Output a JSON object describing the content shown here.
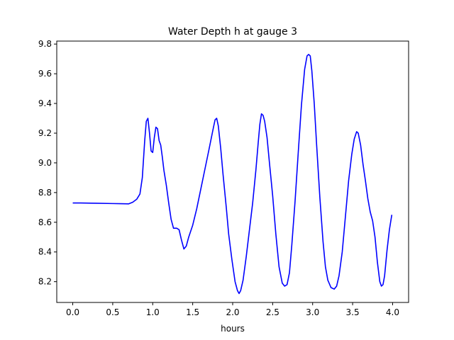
{
  "chart_data": {
    "type": "line",
    "title": "Water Depth h at gauge 3",
    "xlabel": "hours",
    "ylabel": "",
    "xlim": [
      -0.2,
      4.2
    ],
    "ylim": [
      8.06,
      9.82
    ],
    "xticks": [
      0.0,
      0.5,
      1.0,
      1.5,
      2.0,
      2.5,
      3.0,
      3.5,
      4.0
    ],
    "xtick_labels": [
      "0.0",
      "0.5",
      "1.0",
      "1.5",
      "2.0",
      "2.5",
      "3.0",
      "3.5",
      "4.0"
    ],
    "yticks": [
      8.2,
      8.4,
      8.6,
      8.8,
      9.0,
      9.2,
      9.4,
      9.6,
      9.8
    ],
    "ytick_labels": [
      "8.2",
      "8.4",
      "8.6",
      "8.8",
      "9.0",
      "9.2",
      "9.4",
      "9.6",
      "9.8"
    ],
    "grid": false,
    "series": [
      {
        "color": "#0000ff",
        "x": [
          0.0,
          0.1,
          0.3,
          0.5,
          0.6,
          0.7,
          0.75,
          0.8,
          0.84,
          0.87,
          0.9,
          0.92,
          0.94,
          0.96,
          0.98,
          1.0,
          1.02,
          1.04,
          1.06,
          1.08,
          1.1,
          1.12,
          1.14,
          1.17,
          1.2,
          1.23,
          1.26,
          1.3,
          1.33,
          1.36,
          1.39,
          1.42,
          1.45,
          1.5,
          1.55,
          1.6,
          1.65,
          1.7,
          1.73,
          1.76,
          1.78,
          1.8,
          1.82,
          1.85,
          1.88,
          1.92,
          1.95,
          1.99,
          2.03,
          2.06,
          2.08,
          2.1,
          2.13,
          2.17,
          2.21,
          2.25,
          2.29,
          2.32,
          2.34,
          2.36,
          2.38,
          2.4,
          2.43,
          2.46,
          2.5,
          2.54,
          2.58,
          2.62,
          2.65,
          2.68,
          2.71,
          2.74,
          2.78,
          2.82,
          2.86,
          2.9,
          2.93,
          2.95,
          2.97,
          2.99,
          3.02,
          3.05,
          3.09,
          3.13,
          3.16,
          3.19,
          3.23,
          3.27,
          3.3,
          3.33,
          3.37,
          3.41,
          3.45,
          3.49,
          3.52,
          3.55,
          3.57,
          3.6,
          3.63,
          3.66,
          3.69,
          3.72,
          3.75,
          3.78,
          3.81,
          3.84,
          3.86,
          3.88,
          3.9,
          3.93,
          3.96,
          3.99
        ],
        "y": [
          8.73,
          8.73,
          8.728,
          8.726,
          8.725,
          8.724,
          8.735,
          8.755,
          8.79,
          8.9,
          9.15,
          9.28,
          9.3,
          9.2,
          9.08,
          9.07,
          9.17,
          9.24,
          9.23,
          9.15,
          9.12,
          9.04,
          8.95,
          8.85,
          8.73,
          8.62,
          8.56,
          8.56,
          8.55,
          8.48,
          8.42,
          8.44,
          8.5,
          8.58,
          8.69,
          8.82,
          8.95,
          9.08,
          9.16,
          9.24,
          9.29,
          9.3,
          9.25,
          9.1,
          8.92,
          8.7,
          8.52,
          8.35,
          8.2,
          8.14,
          8.12,
          8.14,
          8.21,
          8.37,
          8.55,
          8.73,
          8.95,
          9.14,
          9.26,
          9.33,
          9.32,
          9.28,
          9.17,
          9.0,
          8.78,
          8.52,
          8.3,
          8.19,
          8.17,
          8.18,
          8.26,
          8.45,
          8.74,
          9.07,
          9.39,
          9.63,
          9.72,
          9.73,
          9.72,
          9.62,
          9.4,
          9.12,
          8.77,
          8.47,
          8.3,
          8.21,
          8.16,
          8.15,
          8.17,
          8.24,
          8.4,
          8.64,
          8.88,
          9.06,
          9.16,
          9.21,
          9.2,
          9.12,
          8.99,
          8.88,
          8.76,
          8.67,
          8.61,
          8.5,
          8.33,
          8.2,
          8.17,
          8.18,
          8.24,
          8.41,
          8.55,
          8.65
        ]
      }
    ]
  }
}
